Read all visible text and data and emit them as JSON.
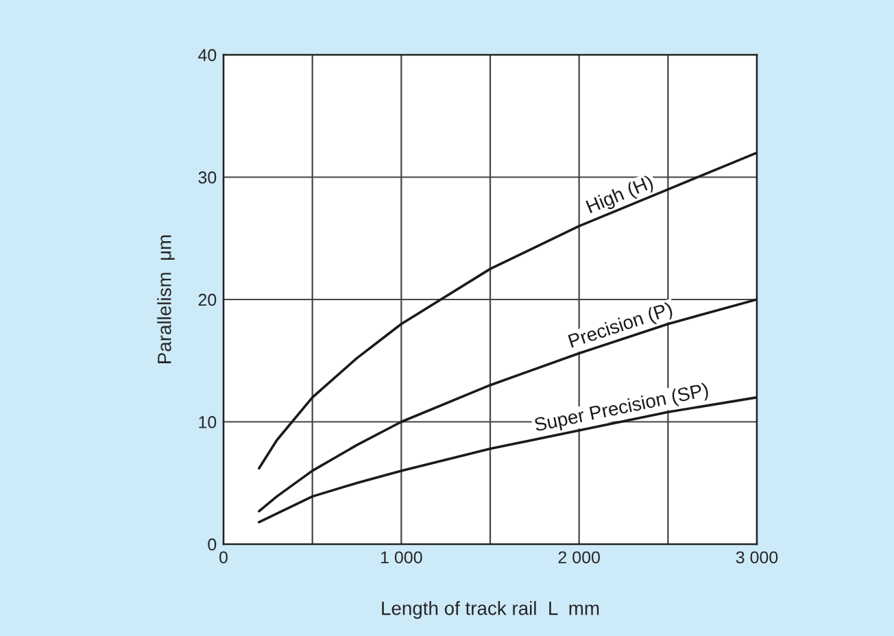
{
  "chart_data": {
    "type": "line",
    "xlabel": "Length of track rail  L  mm",
    "ylabel": "Parallelism  μm",
    "xlim": [
      0,
      3000
    ],
    "xticks": [
      0,
      {
        "value": 1000,
        "label": "1 000"
      },
      {
        "value": 2000,
        "label": "2 000"
      },
      {
        "value": 3000,
        "label": "3 000"
      }
    ],
    "ylim": [
      0,
      40
    ],
    "yticks": [
      0,
      10,
      20,
      30,
      40
    ],
    "grid": true,
    "marker": "none",
    "line_style": "solid",
    "x": [
      200,
      300,
      500,
      750,
      1000,
      1500,
      2000,
      2500,
      3000
    ],
    "series": [
      {
        "name": "High (H)",
        "color": "#1a1a1a",
        "values": [
          6.2,
          8.5,
          12,
          15.2,
          18,
          22.5,
          26,
          29,
          32
        ]
      },
      {
        "name": "Precision (P)",
        "color": "#1a1a1a",
        "values": [
          2.7,
          3.9,
          6,
          8.1,
          10,
          13,
          15.6,
          18,
          20
        ]
      },
      {
        "name": "Super Precision (SP)",
        "color": "#1a1a1a",
        "values": [
          1.8,
          2.5,
          3.9,
          5,
          6,
          7.8,
          9.3,
          10.8,
          12
        ]
      }
    ]
  }
}
